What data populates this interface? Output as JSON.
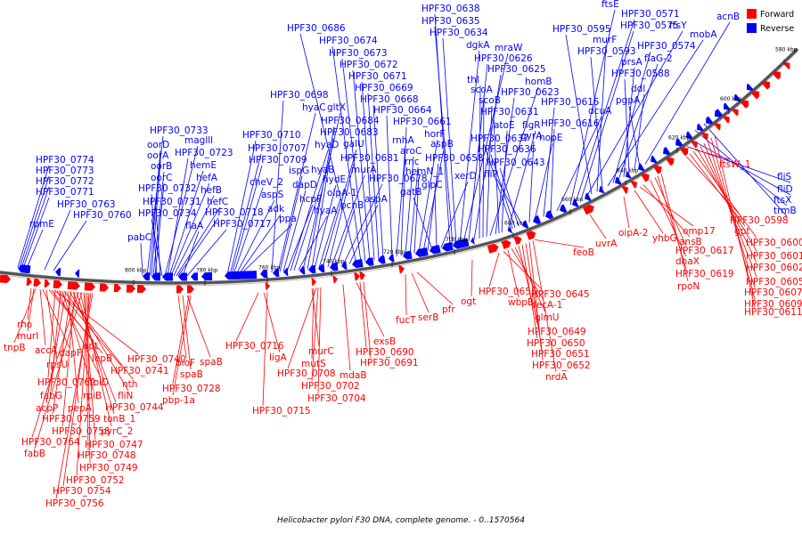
{
  "colors": {
    "forward": "#ff0000",
    "reverse": "#0000ff",
    "backbone": "#555555"
  },
  "legend": {
    "forward": "Forward",
    "reverse": "Reverse"
  },
  "caption": "Helicobacter pylori F30 DNA, complete genome. - 0..1570564",
  "ticks": [
    "800 kbp",
    "780 kbp",
    "760 kbp",
    "740 kbp",
    "720 kbp",
    "700 kbp",
    "680 kbp",
    "660 kbp",
    "640 kbp",
    "620 kbp",
    "600 kbp",
    "580 kbp"
  ],
  "reverse_labels": [
    "HPF30_0774",
    "HPF30_0773",
    "HPF30_0772",
    "HPF30_0771",
    "HPF30_0763",
    "rpmE",
    "HPF30_0760",
    "pabC",
    "HPF30_0733",
    "oorD",
    "oorA",
    "oorB",
    "oorC",
    "HPF30_0732",
    "HPF30_0731",
    "HPF30_0734",
    "maglll",
    "HPF30_0723",
    "hemE",
    "hefA",
    "hefB",
    "hefC",
    "HPF30_0718",
    "flaA",
    "HPF30_0717",
    "HPF30_0710",
    "HPF30_0707",
    "HPF30_0709",
    "cheV_2",
    "aspS",
    "adk",
    "ppa",
    "HPF30_0698",
    "hyaC",
    "ispG",
    "dapD",
    "hcpF",
    "hyaD",
    "hyaB",
    "hyaA",
    "gltX",
    "HPF30_0684",
    "HPF30_0683",
    "hydE",
    "oipA-1",
    "galU",
    "HPF30_0681",
    "murA",
    "pcnB",
    "HPF30_0678",
    "aspA",
    "HPF30_0686",
    "HPF30_0674",
    "HPF30_0673",
    "HPF30_0672",
    "HPF30_0671",
    "HPF30_0669",
    "HPF30_0668",
    "HPF30_0664",
    "rnhA",
    "HPF30_0661",
    "aroC",
    "rnc",
    "hemN_1",
    "horF",
    "aspB",
    "HPF30_0658",
    "gatB",
    "glpC",
    "xerD",
    "HPF30_0638",
    "HPF30_0635",
    "HPF30_0634",
    "dgkA",
    "mraW",
    "HPF30_0626",
    "HPF30_0625",
    "thI",
    "scoA",
    "scoB",
    "homB",
    "HPF30_0623",
    "HPF30_0631",
    "atoE",
    "flgR",
    "HPF30_0637",
    "HPF30_0636",
    "HPF30_0643",
    "fliP",
    "gyrA",
    "hopE",
    "HPF30_0615",
    "HPF30_0616",
    "dcuA",
    "ftsE",
    "HPF30_0571",
    "HPF30_0575",
    "ftsY",
    "HPF30_0595",
    "murF",
    "HPF30_0593",
    "mobA",
    "HPF30_0574",
    "flaG-2",
    "prsA",
    "HPF30_0588",
    "ddl",
    "pgpA",
    "acnB",
    "fliS",
    "fliD",
    "ftsX",
    "trmB"
  ],
  "forward_labels": [
    "rho",
    "murI",
    "tnpB",
    "accA",
    "dapF",
    "rpsU",
    "apt",
    "lepB",
    "HPF30_0740",
    "HPF30_0762",
    "folD",
    "HPF30_0741",
    "fabG",
    "rpiB",
    "nth",
    "acpP",
    "pepA",
    "fliN",
    "HPF30_0759",
    "HPF30_0744",
    "HPF30_0758",
    "tonB_1",
    "HPF30_0764",
    "pyrC_2",
    "fabB",
    "HPF30_0747",
    "HPF30_0748",
    "HPF30_0749",
    "HPF30_0752",
    "HPF30_0754",
    "HPF30_0756",
    "bioF",
    "spaB",
    "spaB",
    "HPF30_0728",
    "pbp-1a",
    "HPF30_0716",
    "ligA",
    "HPF30_0715",
    "murC",
    "mutS",
    "HPF30_0708",
    "HPF30_0702",
    "HPF30_0704",
    "mdaB",
    "exsB",
    "HPF30_0690",
    "HPF30_0691",
    "fucT",
    "serB",
    "pfr",
    "ogt",
    "HPF30_0655",
    "HPF30_0645",
    "wbpB",
    "fecA-1",
    "glmU",
    "HPF30_0649",
    "HPF30_0650",
    "HPF30_0651",
    "HPF30_0652",
    "nrdA",
    "feoB",
    "uvrA",
    "oipA-2",
    "yhbG",
    "omp17",
    "ansB",
    "dnaX",
    "HPF30_0617",
    "HPF30_0619",
    "rpoN",
    "ftsW_1",
    "HPF30_0598",
    "gpt",
    "HPF30_0600",
    "HPF30_0601",
    "HPF30_0602",
    "HPF30_0605",
    "HPF30_0607",
    "HPF30_0609",
    "HPF30_0611"
  ]
}
